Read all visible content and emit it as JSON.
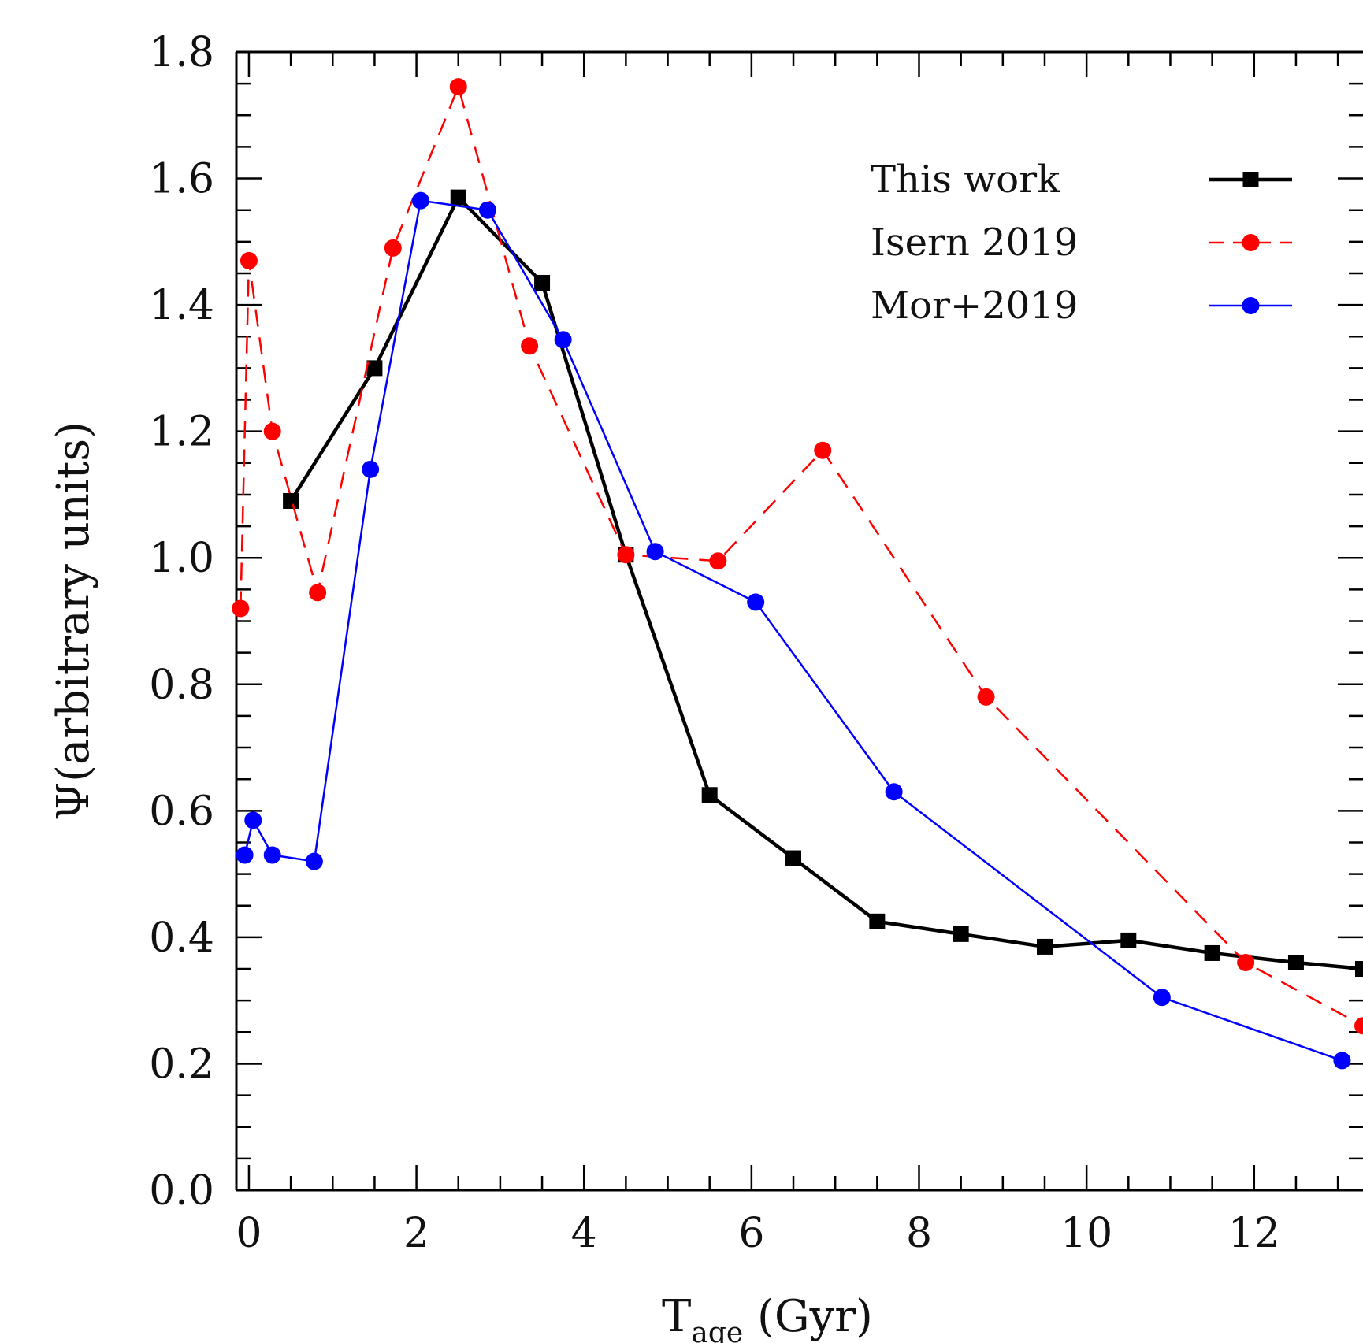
{
  "chart_data": {
    "type": "line",
    "title": "",
    "xlabel": "T",
    "xlabel_subscript": "age",
    "xlabel_unit": " (Gyr)",
    "ylabel": "Ψ(arbitrary units)",
    "xlim": [
      -0.15,
      13.3
    ],
    "ylim": [
      0.0,
      1.8
    ],
    "xticks": [
      0,
      2,
      4,
      6,
      8,
      10,
      12
    ],
    "yticks": [
      0.0,
      0.2,
      0.4,
      0.6,
      0.8,
      1.0,
      1.2,
      1.4,
      1.6,
      1.8
    ],
    "ytick_labels": [
      "0.0",
      "0.2",
      "0.4",
      "0.6",
      "0.8",
      "1.0",
      "1.2",
      "1.4",
      "1.6",
      "1.8"
    ],
    "xtick_labels": [
      "0",
      "2",
      "4",
      "6",
      "8",
      "10",
      "12"
    ],
    "grid": false,
    "legend_position": "top-right",
    "series": [
      {
        "name": "This work",
        "color": "#000000",
        "line_style": "solid",
        "marker": "square",
        "x": [
          0.5,
          1.5,
          2.5,
          3.5,
          4.5,
          5.5,
          6.5,
          7.5,
          8.5,
          9.5,
          10.5,
          11.5,
          12.5,
          13.3
        ],
        "y": [
          1.09,
          1.3,
          1.57,
          1.435,
          1.005,
          0.625,
          0.525,
          0.425,
          0.405,
          0.385,
          0.395,
          0.375,
          0.36,
          0.35
        ]
      },
      {
        "name": "Isern 2019",
        "color": "#ff0000",
        "line_style": "dashed",
        "marker": "circle",
        "x": [
          -0.1,
          0.0,
          0.28,
          0.82,
          1.72,
          2.5,
          3.35,
          4.5,
          5.6,
          6.85,
          8.8,
          11.9,
          13.3
        ],
        "y": [
          0.92,
          1.47,
          1.2,
          0.945,
          1.49,
          1.745,
          1.335,
          1.005,
          0.995,
          1.17,
          0.78,
          0.36,
          0.26
        ]
      },
      {
        "name": "Mor+2019",
        "color": "#0000ff",
        "line_style": "solid",
        "marker": "circle",
        "x": [
          -0.05,
          0.05,
          0.28,
          0.78,
          1.45,
          2.05,
          2.85,
          3.75,
          4.85,
          6.05,
          7.7,
          10.9,
          13.05
        ],
        "y": [
          0.53,
          0.585,
          0.53,
          0.52,
          1.14,
          1.565,
          1.55,
          1.345,
          1.01,
          0.93,
          0.63,
          0.305,
          0.205
        ]
      }
    ]
  }
}
